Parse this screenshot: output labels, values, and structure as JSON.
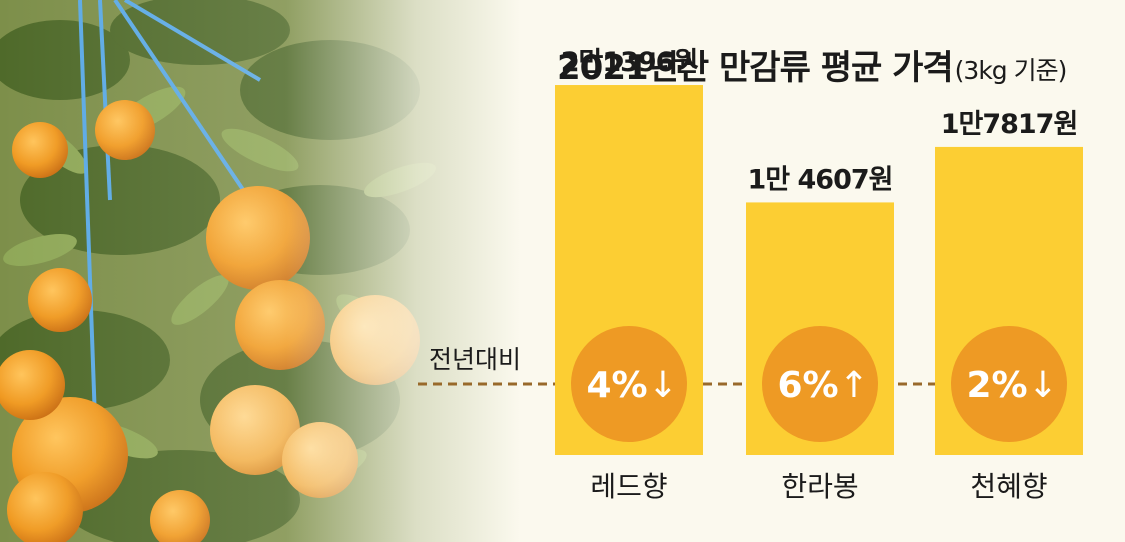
{
  "title": "2021년산 만감류 평균 가격",
  "title_unit": "(3kg 기준)",
  "colors": {
    "bar": "#fcce33",
    "circle": "#ee9a24",
    "dashed_line": "#98692a",
    "text_dark": "#1b1b1b",
    "circle_text": "#ffffff"
  },
  "chart_data": {
    "type": "bar",
    "categories": [
      "레드향",
      "한라봉",
      "천혜향"
    ],
    "values": [
      21396,
      14607,
      17817
    ],
    "value_labels": [
      "2만1396원",
      "1만 4607원",
      "1만7817원"
    ],
    "ylim": [
      0,
      24000
    ],
    "change_label": "전년대비",
    "changes": [
      {
        "percent": 4,
        "direction": "down",
        "label": "4%",
        "arrow": "↓"
      },
      {
        "percent": 6,
        "direction": "up",
        "label": "6%",
        "arrow": "↑"
      },
      {
        "percent": 2,
        "direction": "down",
        "label": "2%",
        "arrow": "↓"
      }
    ]
  }
}
